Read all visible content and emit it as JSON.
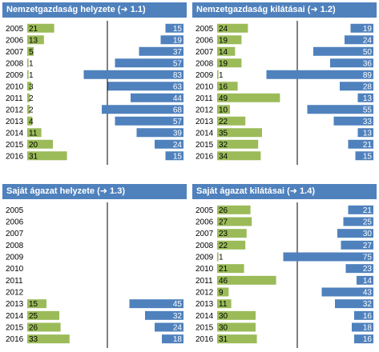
{
  "colors": {
    "header": "#4f81bd",
    "blue_bar": "#4f81bd",
    "green_bar": "#9bbb59",
    "divider": "#000000",
    "text": "#000000",
    "header_text": "#ffffff"
  },
  "chart_data": [
    {
      "type": "bar",
      "title": "Nemzetgazdaság helyzete (➜ 1.1)",
      "categories": [
        "2005",
        "2006",
        "2007",
        "2008",
        "2009",
        "2010",
        "2011",
        "2012",
        "2013",
        "2014",
        "2015",
        "2016"
      ],
      "series": [
        {
          "values": [
            21,
            13,
            5,
            1,
            1,
            3,
            2,
            2,
            4,
            11,
            20,
            31
          ]
        },
        {
          "values": [
            15,
            19,
            37,
            57,
            83,
            63,
            44,
            68,
            57,
            39,
            24,
            15
          ]
        }
      ]
    },
    {
      "type": "bar",
      "title": "Nemzetgazdaság kilátásai (➜ 1.2)",
      "categories": [
        "2005",
        "2006",
        "2007",
        "2008",
        "2009",
        "2010",
        "2011",
        "2012",
        "2013",
        "2014",
        "2015",
        "2016"
      ],
      "series": [
        {
          "values": [
            24,
            19,
            14,
            19,
            1,
            16,
            49,
            10,
            22,
            35,
            32,
            34
          ]
        },
        {
          "values": [
            19,
            24,
            50,
            36,
            89,
            28,
            13,
            55,
            33,
            13,
            21,
            15
          ]
        }
      ]
    },
    {
      "type": "bar",
      "title": "Saját ágazat helyzete (➜ 1.3)",
      "categories": [
        "2005",
        "2006",
        "2007",
        "2008",
        "2009",
        "2010",
        "2011",
        "2012",
        "2013",
        "2014",
        "2015",
        "2016"
      ],
      "series": [
        {
          "values": [
            null,
            null,
            null,
            null,
            null,
            null,
            null,
            null,
            15,
            25,
            26,
            33
          ]
        },
        {
          "values": [
            null,
            null,
            null,
            null,
            null,
            null,
            null,
            null,
            45,
            32,
            24,
            18
          ]
        }
      ]
    },
    {
      "type": "bar",
      "title": "Saját ágazat kilátásai (➜ 1.4)",
      "categories": [
        "2005",
        "2006",
        "2007",
        "2008",
        "2009",
        "2010",
        "2011",
        "2012",
        "2013",
        "2014",
        "2015",
        "2016"
      ],
      "series": [
        {
          "values": [
            26,
            27,
            23,
            22,
            1,
            21,
            46,
            9,
            11,
            30,
            30,
            31
          ]
        },
        {
          "values": [
            21,
            25,
            30,
            27,
            75,
            23,
            14,
            43,
            32,
            16,
            18,
            16
          ]
        }
      ]
    }
  ]
}
